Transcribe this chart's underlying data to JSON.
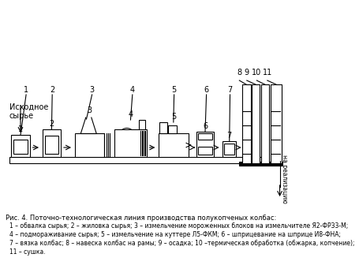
{
  "title": "Рис. 4. Поточно-технологическая линия производства полукопченых колбас:",
  "caption_lines": [
    "1 – обвалка сырья; 2 – жиловка сырья; 3 – измельчение мороженных блоков на измельчителе Я2-ФРЗ3-М;",
    "4 – подмораживание сырья; 5 – измельчение на куттере Л5-ФКМ; 6 – шприцевание на шприце И8-ФНА;",
    "7 – вязка колбас; 8 – навеска колбас на рамы; 9 – осадка; 10 –термическая обработка (обжарка, копчение);",
    "11 – сушка."
  ],
  "source_label": "Исходное\nсырье",
  "output_label": "на реализацию",
  "bg_color": "#ffffff",
  "line_color": "#000000",
  "text_color": "#000000"
}
